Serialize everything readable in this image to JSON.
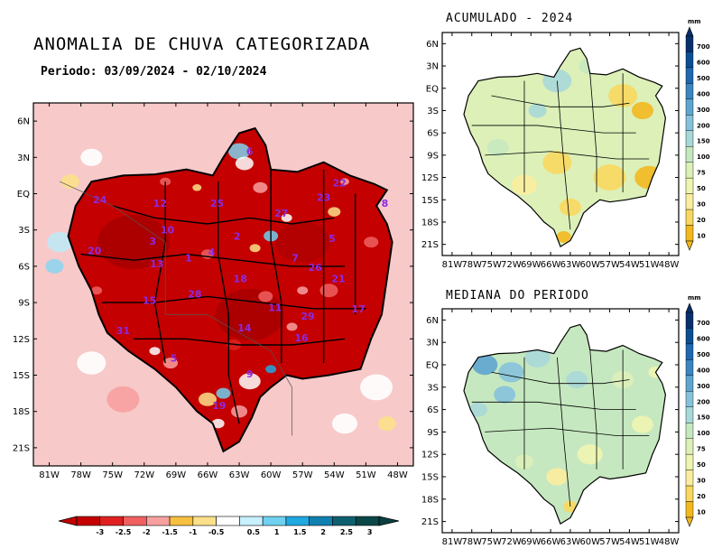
{
  "main": {
    "title": "ANOMALIA DE CHUVA CATEGORIZADA",
    "period": "Periodo: 03/09/2024 - 02/10/2024",
    "lat_ticks": [
      "6N",
      "3N",
      "EQ",
      "3S",
      "6S",
      "9S",
      "12S",
      "15S",
      "18S",
      "21S"
    ],
    "lon_ticks": [
      "81W",
      "78W",
      "75W",
      "72W",
      "69W",
      "66W",
      "63W",
      "60W",
      "57W",
      "54W",
      "51W",
      "48W"
    ],
    "basin_labels": [
      {
        "id": "24",
        "lon": -76.2,
        "lat": -0.5
      },
      {
        "id": "12",
        "lon": -70.5,
        "lat": -0.8
      },
      {
        "id": "25",
        "lon": -65.1,
        "lat": -0.8
      },
      {
        "id": "6",
        "lon": -62.0,
        "lat": 3.5
      },
      {
        "id": "27",
        "lon": -59.0,
        "lat": -1.6
      },
      {
        "id": "23",
        "lon": -55.0,
        "lat": -0.3
      },
      {
        "id": "22",
        "lon": -53.5,
        "lat": 0.9
      },
      {
        "id": "8",
        "lon": -49.2,
        "lat": -0.8
      },
      {
        "id": "10",
        "lon": -69.8,
        "lat": -3.0
      },
      {
        "id": "3",
        "lon": -71.2,
        "lat": -3.9
      },
      {
        "id": "20",
        "lon": -76.7,
        "lat": -4.7
      },
      {
        "id": "1",
        "lon": -67.8,
        "lat": -5.3
      },
      {
        "id": "4",
        "lon": -65.6,
        "lat": -4.8
      },
      {
        "id": "2",
        "lon": -63.2,
        "lat": -3.5
      },
      {
        "id": "5",
        "lon": -54.2,
        "lat": -3.7
      },
      {
        "id": "7",
        "lon": -57.7,
        "lat": -5.3
      },
      {
        "id": "13",
        "lon": -70.8,
        "lat": -5.8
      },
      {
        "id": "26",
        "lon": -55.8,
        "lat": -6.1
      },
      {
        "id": "18",
        "lon": -62.9,
        "lat": -7.0
      },
      {
        "id": "21",
        "lon": -53.6,
        "lat": -7.0
      },
      {
        "id": "28",
        "lon": -67.2,
        "lat": -8.3
      },
      {
        "id": "15",
        "lon": -71.5,
        "lat": -8.8
      },
      {
        "id": "11",
        "lon": -59.6,
        "lat": -9.4
      },
      {
        "id": "29",
        "lon": -56.5,
        "lat": -10.1
      },
      {
        "id": "17",
        "lon": -51.7,
        "lat": -9.5
      },
      {
        "id": "31",
        "lon": -74.0,
        "lat": -11.3
      },
      {
        "id": "14",
        "lon": -62.5,
        "lat": -11.1
      },
      {
        "id": "16",
        "lon": -57.1,
        "lat": -11.9
      },
      {
        "id": "5",
        "lon": -69.2,
        "lat": -13.6
      },
      {
        "id": "9",
        "lon": -62.0,
        "lat": -14.9
      },
      {
        "id": "19",
        "lon": -64.9,
        "lat": -17.5
      }
    ]
  },
  "colorbar": {
    "labels": [
      "-3",
      "-2.5",
      "-2",
      "-1.5",
      "-1",
      "-0.5",
      "0.5",
      "1",
      "1.5",
      "2",
      "2.5",
      "3"
    ],
    "colors": [
      "#c40000",
      "#e02020",
      "#f06060",
      "#f8a0a0",
      "#f7c040",
      "#fbe08a",
      "#ffffff",
      "#c8f0ff",
      "#70d0f0",
      "#20a8e0",
      "#1080b0",
      "#0e6070",
      "#0a4848"
    ]
  },
  "panels": [
    {
      "title": "ACUMULADO - 2024",
      "unit": "mm"
    },
    {
      "title": "MEDIANA DO PERIODO",
      "unit": "mm"
    }
  ],
  "small_lat_ticks": [
    "6N",
    "3N",
    "EQ",
    "3S",
    "6S",
    "9S",
    "12S",
    "15S",
    "18S",
    "21S"
  ],
  "small_lon_ticks": [
    "81W",
    "78W",
    "75W",
    "72W",
    "69W",
    "66W",
    "63W",
    "60W",
    "57W",
    "54W",
    "51W",
    "48W"
  ],
  "vcolorbar": {
    "labels": [
      "700",
      "600",
      "500",
      "400",
      "300",
      "200",
      "150",
      "100",
      "75",
      "50",
      "30",
      "20",
      "10"
    ],
    "colors": [
      "#08306b",
      "#0d4d92",
      "#1f68b0",
      "#3a86c2",
      "#5fa5d0",
      "#86c2dc",
      "#a8d8d8",
      "#c6e8c0",
      "#dcf0b8",
      "#eef5b0",
      "#fbeda0",
      "#f8d860",
      "#f2b820"
    ]
  }
}
